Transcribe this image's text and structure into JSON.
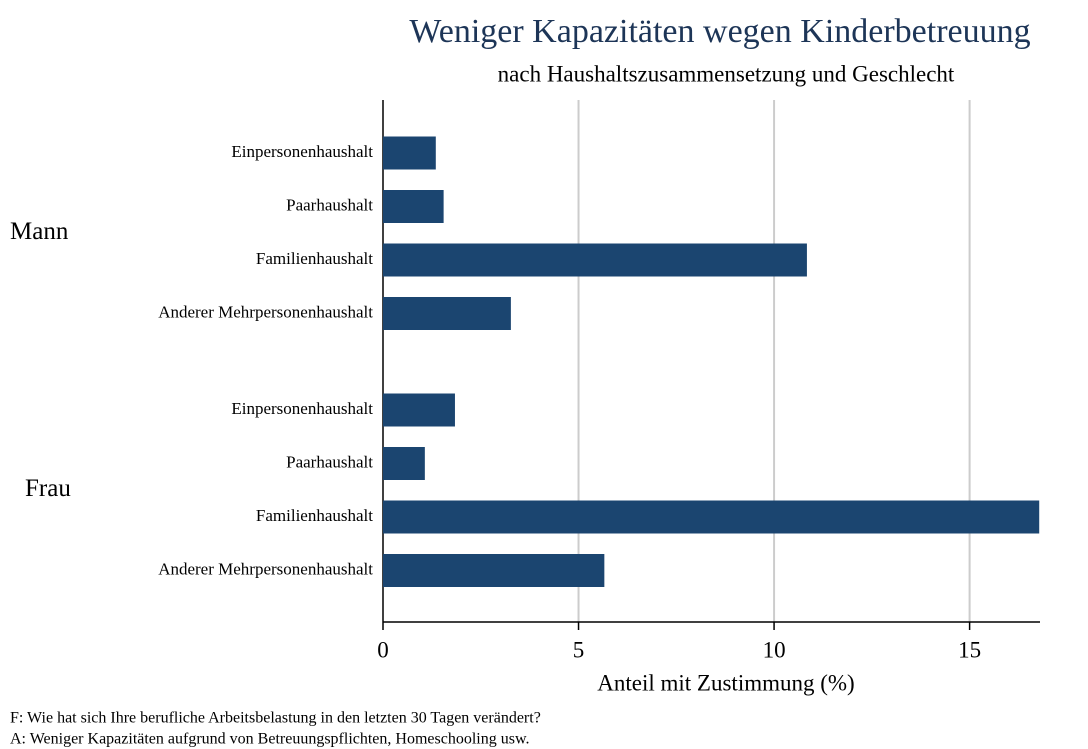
{
  "chart_data": {
    "type": "bar",
    "title": "Weniger Kapazitäten wegen Kinderbetreuung",
    "subtitle": "nach Haushaltszusammensetzung und Geschlecht",
    "xlabel": "Anteil mit Zustimmung (%)",
    "groups": [
      {
        "name": "Mann",
        "categories": [
          "Einpersonenhaushalt",
          "Paarhaushalt",
          "Familienhaushalt",
          "Anderer Mehrpersonenhaushalt"
        ],
        "values": [
          1.35,
          1.55,
          10.84,
          3.27
        ]
      },
      {
        "name": "Frau",
        "categories": [
          "Einpersonenhaushalt",
          "Paarhaushalt",
          "Familienhaushalt",
          "Anderer Mehrpersonenhaushalt"
        ],
        "values": [
          1.84,
          1.07,
          16.78,
          5.66
        ]
      }
    ],
    "color": "#1b4570",
    "xlim": [
      0,
      16.8
    ],
    "xticks": [
      0,
      5,
      10,
      15
    ],
    "grid": true,
    "notes": [
      "F: Wie hat sich Ihre berufliche Arbeitsbelastung in den letzten 30 Tagen verändert?",
      "A: Weniger Kapazitäten aufgrund von Betreuungspflichten, Homeschooling usw."
    ]
  }
}
